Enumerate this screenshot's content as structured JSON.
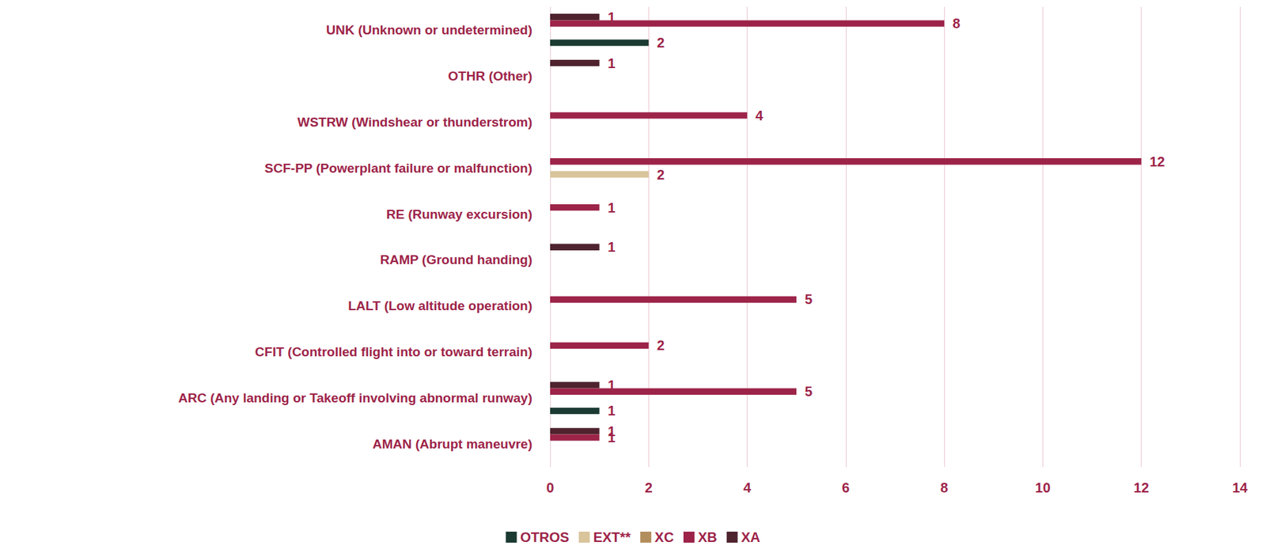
{
  "chart_data": {
    "type": "bar",
    "orientation": "horizontal",
    "categories": [
      "AMAN (Abrupt maneuvre)",
      "ARC (Any landing or Takeoff involving abnormal runway)",
      "CFIT (Controlled flight into or toward terrain)",
      "LALT (Low altitude operation)",
      "RAMP (Ground handing)",
      "RE (Runway excursion)",
      "SCF-PP (Powerplant failure or malfunction)",
      "WSTRW (Windshear or thunderstrom)",
      "OTHR (Other)",
      "UNK (Unknown or undetermined)"
    ],
    "series": [
      {
        "name": "OTROS",
        "color": "#1b3a32",
        "values": [
          null,
          1,
          null,
          null,
          null,
          null,
          null,
          null,
          null,
          2
        ]
      },
      {
        "name": "EXT**",
        "color": "#d9c49b",
        "values": [
          null,
          null,
          null,
          null,
          null,
          null,
          2,
          null,
          null,
          null
        ]
      },
      {
        "name": "XC",
        "color": "#b38e5d",
        "values": [
          null,
          null,
          null,
          null,
          null,
          null,
          null,
          null,
          null,
          null
        ]
      },
      {
        "name": "XB",
        "color": "#9d2449",
        "values": [
          1,
          5,
          2,
          5,
          null,
          1,
          12,
          4,
          null,
          8
        ]
      },
      {
        "name": "XA",
        "color": "#4e232e",
        "values": [
          1,
          1,
          null,
          null,
          1,
          null,
          null,
          null,
          1,
          1
        ]
      }
    ],
    "xlim": [
      0,
      14
    ],
    "xticks": [
      0,
      2,
      4,
      6,
      8,
      10,
      12,
      14
    ],
    "grid": true,
    "legend": "bottom",
    "data_labels": true
  }
}
